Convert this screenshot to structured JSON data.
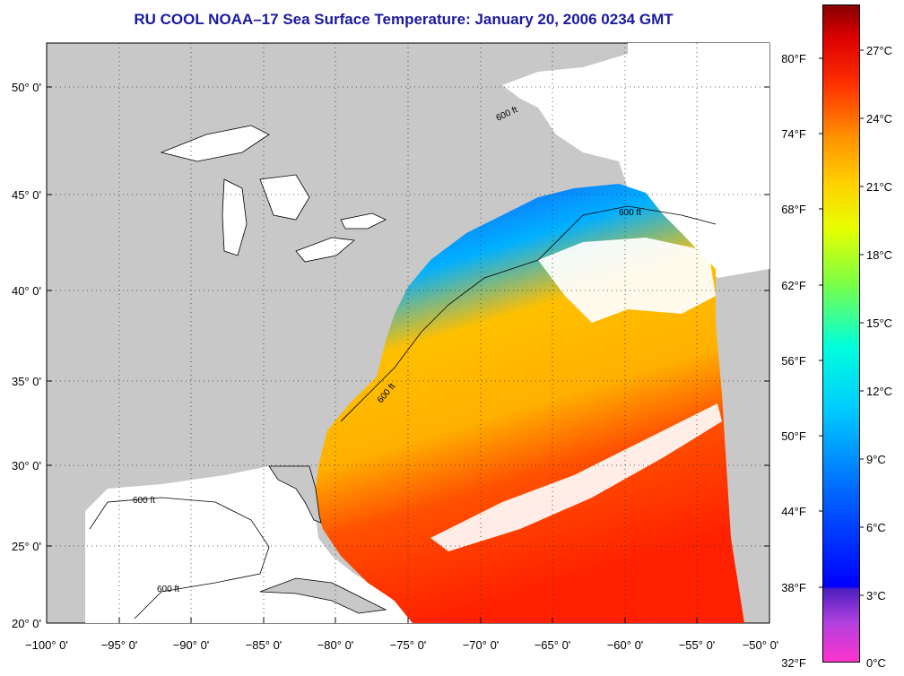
{
  "title": "RU COOL  NOAA–17  Sea Surface Temperature:  January 20, 2006 0234 GMT",
  "axes": {
    "lat_labels": [
      "50° 0'",
      "45° 0'",
      "40° 0'",
      "35° 0'",
      "30° 0'",
      "25° 0'",
      "20° 0'"
    ],
    "lon_labels": [
      "−100° 0'",
      "−95° 0'",
      "−90° 0'",
      "−85° 0'",
      "−80° 0'",
      "−75° 0'",
      "−70° 0'",
      "−65° 0'",
      "−60° 0'",
      "−55° 0'",
      "−50° 0'"
    ]
  },
  "colorbar": {
    "fahrenheit": [
      "80°F",
      "74°F",
      "68°F",
      "62°F",
      "56°F",
      "50°F",
      "44°F",
      "38°F",
      "32°F"
    ],
    "celsius": [
      "27°C",
      "24°C",
      "21°C",
      "18°C",
      "15°C",
      "12°C",
      "9°C",
      "6°C",
      "3°C",
      "0°C"
    ]
  },
  "contour_label": "600 ft",
  "colors": {
    "land": "#c8c8c8",
    "title": "#1a1aa0",
    "ramp": [
      "#ff33cc",
      "#7a20c8",
      "#0000ff",
      "#0060ff",
      "#00c8ff",
      "#00ffdd",
      "#80ff40",
      "#e8ff00",
      "#ffd000",
      "#ff9000",
      "#ff3000",
      "#e00000",
      "#990000"
    ]
  }
}
